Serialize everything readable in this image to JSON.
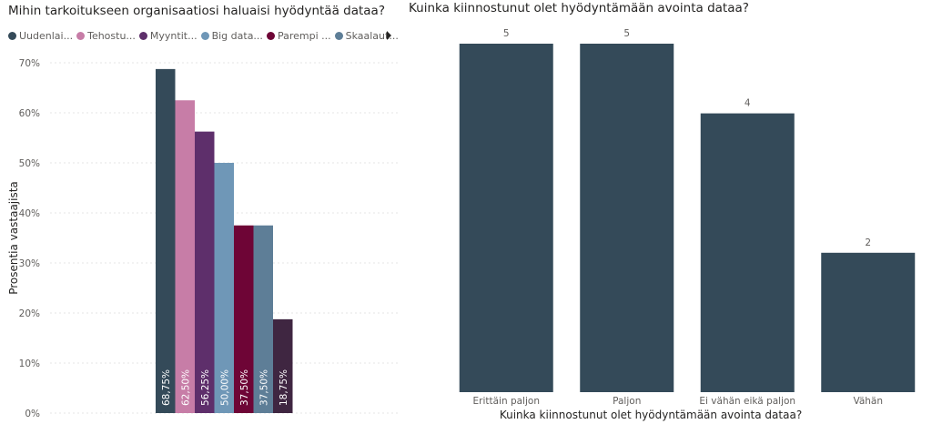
{
  "chart_data": [
    {
      "type": "bar",
      "title": "Mihin tarkoitukseen organisaatiosi haluaisi hyödyntää dataa?",
      "ylabel": "Prosentia vastaajista",
      "xlabel": "",
      "ylim": [
        0,
        70
      ],
      "yticks": [
        "0%",
        "10%",
        "20%",
        "30%",
        "40%",
        "50%",
        "60%",
        "70%"
      ],
      "grid": true,
      "legend_position": "top",
      "series": [
        {
          "name": "Uudenlai...",
          "color": "#344a59",
          "value": 68.75,
          "label": "68,75%"
        },
        {
          "name": "Tehostu...",
          "color": "#c77da7",
          "value": 62.5,
          "label": "62,50%"
        },
        {
          "name": "Myyntit...",
          "color": "#5e2f6b",
          "value": 56.25,
          "label": "56,25%"
        },
        {
          "name": "Big data...",
          "color": "#6f97b7",
          "value": 50.0,
          "label": "50,00%"
        },
        {
          "name": "Parempi ...",
          "color": "#6e0536",
          "value": 37.5,
          "label": "37,50%"
        },
        {
          "name": "Skaalaut...",
          "color": "#5e7e97",
          "value": 37.5,
          "label": "37,50%"
        },
        {
          "name": "",
          "color": "#3f2641",
          "value": 18.75,
          "label": "18,75%"
        }
      ]
    },
    {
      "type": "bar",
      "title": "Kuinka kiinnostunut olet hyödyntämään avointa dataa?",
      "xlabel": "Kuinka kiinnostunut olet hyödyntämään avointa dataa?",
      "ylabel": "",
      "color": "#344a59",
      "categories": [
        "Erittäin paljon",
        "Paljon",
        "Ei vähän eikä paljon",
        "Vähän"
      ],
      "values": [
        5,
        5,
        4,
        2
      ],
      "data_labels": [
        "5",
        "5",
        "4",
        "2"
      ],
      "ylim": [
        0,
        5
      ]
    }
  ]
}
